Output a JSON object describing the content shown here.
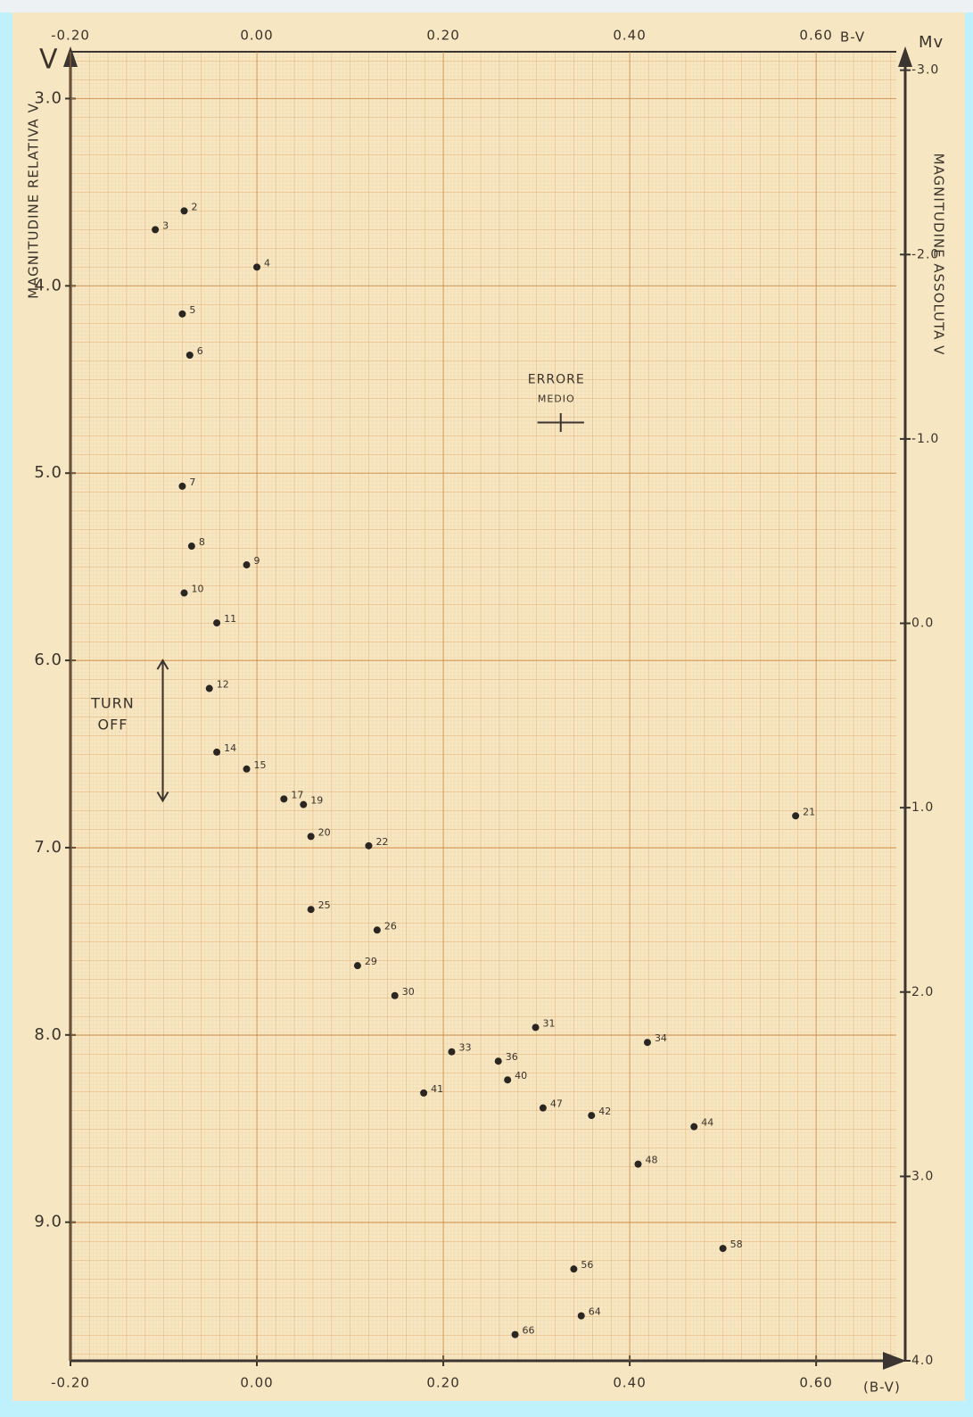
{
  "chart_data": {
    "type": "scatter",
    "x_label": "B-V",
    "x_label_bottom": "(B-V)",
    "y_symbol": "V",
    "y_label": "MAGNITUDINE RELATIVA V",
    "y2_symbol": "Mv",
    "y2_label": "MAGNITUDINE ASSOLUTA V",
    "xlim": [
      -0.2,
      0.686
    ],
    "xticks": [
      {
        "value": -0.2,
        "label": "-0.20"
      },
      {
        "value": 0,
        "label": "0.00"
      },
      {
        "value": 0.2,
        "label": "0.20"
      },
      {
        "value": 0.4,
        "label": "0.40"
      },
      {
        "value": 0.6,
        "label": "0.60"
      }
    ],
    "ylim": [
      2.75,
      9.74
    ],
    "y_inverted": true,
    "yticks": [
      {
        "value": 3,
        "label": "3.0"
      },
      {
        "value": 4,
        "label": "4.0"
      },
      {
        "value": 5,
        "label": "5.0"
      },
      {
        "value": 6,
        "label": "6.0"
      },
      {
        "value": 7,
        "label": "7.0"
      },
      {
        "value": 8,
        "label": "8.0"
      },
      {
        "value": 9,
        "label": "9.0"
      }
    ],
    "y2lim": [
      -3.1,
      4.0
    ],
    "y2ticks": [
      {
        "value": -3,
        "label": "-3.0"
      },
      {
        "value": -2,
        "label": "-2.0"
      },
      {
        "value": -1,
        "label": "-1.0"
      },
      {
        "value": 0,
        "label": "0.0"
      },
      {
        "value": 1,
        "label": "1.0"
      },
      {
        "value": 2,
        "label": "2.0"
      },
      {
        "value": 3,
        "label": "3.0"
      },
      {
        "value": 4,
        "label": "4.0"
      }
    ],
    "grid": true,
    "series": [
      {
        "color": "#2a2622",
        "x": [
          -0.109,
          -0.078,
          0.0,
          -0.08,
          -0.072,
          -0.08,
          -0.07,
          -0.011,
          -0.078,
          -0.043,
          -0.051,
          -0.043,
          -0.011,
          0.029,
          0.05,
          0.058,
          0.578,
          0.12,
          0.058,
          0.129,
          0.108,
          0.148,
          0.299,
          0.209,
          0.419,
          0.259,
          0.269,
          0.179,
          0.307,
          0.359,
          0.469,
          0.409,
          0.5,
          0.34,
          0.348,
          0.277
        ],
        "values": [
          3.7,
          3.6,
          3.9,
          4.15,
          4.37,
          5.07,
          5.39,
          5.49,
          5.64,
          5.8,
          6.15,
          6.49,
          6.58,
          6.74,
          6.77,
          6.94,
          6.83,
          6.99,
          7.33,
          7.44,
          7.63,
          7.79,
          7.96,
          8.09,
          8.04,
          8.14,
          8.24,
          8.31,
          8.39,
          8.43,
          8.49,
          8.69,
          9.14,
          9.25,
          9.5,
          9.6
        ],
        "labels": [
          "3",
          "2",
          "4",
          "5",
          "6",
          "7",
          "8",
          "9",
          "10",
          "11",
          "12",
          "14",
          "15",
          "17",
          "19",
          "20",
          "21",
          "22",
          "25",
          "26",
          "29",
          "30",
          "31",
          "33",
          "34",
          "36",
          "40",
          "41",
          "47",
          "42",
          "44",
          "48",
          "58",
          "56",
          "64",
          "66"
        ]
      }
    ],
    "error_label": [
      "ERRORE",
      "MEDIO"
    ],
    "error_bar": {
      "x": 0.326,
      "y": 4.73,
      "xerr": 0.025,
      "yerr": 0.05
    },
    "turn_off": {
      "label": [
        "TURN",
        "OFF"
      ],
      "x": -0.101,
      "from": 6.0,
      "to": 6.75
    }
  }
}
